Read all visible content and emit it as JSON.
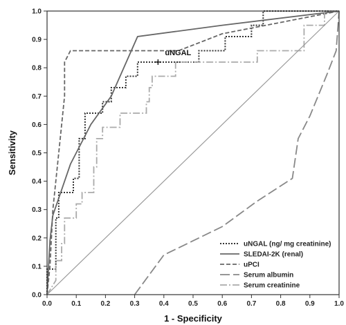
{
  "chart_data": {
    "type": "line",
    "title": "",
    "xlabel": "1 - Specificity",
    "ylabel": "Sensitivity",
    "xlim": [
      0,
      1
    ],
    "ylim": [
      0,
      1
    ],
    "x_ticks": [
      "0.0",
      "0.1",
      "0.2",
      "0.3",
      "0.4",
      "0.5",
      "0.6",
      "0.7",
      "0.8",
      "0.9",
      "1.0"
    ],
    "y_ticks": [
      "0.0",
      "0.1",
      "0.2",
      "0.3",
      "0.4",
      "0.5",
      "0.6",
      "0.7",
      "0.8",
      "0.9",
      "1.0"
    ],
    "grid": false,
    "legend_position": "bottom-right",
    "annotation": {
      "text": "uNGAL",
      "x": 0.38,
      "y": 0.82
    },
    "series": [
      {
        "name": "uNGAL (ng/ mg creatinine)",
        "style": "dotted",
        "color": "#333333",
        "points": [
          [
            0,
            0
          ],
          [
            0,
            0.09
          ],
          [
            0.03,
            0.09
          ],
          [
            0.03,
            0.27
          ],
          [
            0.04,
            0.27
          ],
          [
            0.04,
            0.36
          ],
          [
            0.09,
            0.36
          ],
          [
            0.09,
            0.41
          ],
          [
            0.11,
            0.41
          ],
          [
            0.11,
            0.55
          ],
          [
            0.13,
            0.55
          ],
          [
            0.13,
            0.64
          ],
          [
            0.19,
            0.64
          ],
          [
            0.19,
            0.68
          ],
          [
            0.22,
            0.68
          ],
          [
            0.22,
            0.73
          ],
          [
            0.27,
            0.73
          ],
          [
            0.27,
            0.77
          ],
          [
            0.31,
            0.77
          ],
          [
            0.31,
            0.82
          ],
          [
            0.52,
            0.82
          ],
          [
            0.52,
            0.86
          ],
          [
            0.61,
            0.86
          ],
          [
            0.61,
            0.91
          ],
          [
            0.7,
            0.91
          ],
          [
            0.7,
            0.95
          ],
          [
            0.74,
            0.95
          ],
          [
            0.74,
            1.0
          ],
          [
            1.0,
            1.0
          ]
        ]
      },
      {
        "name": "SLEDAI-2K (renal)",
        "style": "solid",
        "color": "#666666",
        "points": [
          [
            0,
            0
          ],
          [
            0.01,
            0.19
          ],
          [
            0.02,
            0.28
          ],
          [
            0.05,
            0.37
          ],
          [
            0.08,
            0.46
          ],
          [
            0.15,
            0.6
          ],
          [
            0.22,
            0.7
          ],
          [
            0.31,
            0.91
          ],
          [
            0.6,
            0.95
          ],
          [
            1.0,
            1.0
          ]
        ]
      },
      {
        "name": "uPCI",
        "style": "dashed",
        "color": "#666666",
        "points": [
          [
            0,
            0
          ],
          [
            0.01,
            0.1
          ],
          [
            0.02,
            0.3
          ],
          [
            0.04,
            0.5
          ],
          [
            0.06,
            0.7
          ],
          [
            0.06,
            0.82
          ],
          [
            0.08,
            0.86
          ],
          [
            0.45,
            0.86
          ],
          [
            0.6,
            0.92
          ],
          [
            0.75,
            0.95
          ],
          [
            1.0,
            1.0
          ]
        ]
      },
      {
        "name": "Serum albumin",
        "style": "longdash",
        "color": "#888888",
        "points": [
          [
            0.3,
            0.0
          ],
          [
            0.4,
            0.14
          ],
          [
            0.6,
            0.24
          ],
          [
            0.72,
            0.33
          ],
          [
            0.84,
            0.41
          ],
          [
            0.86,
            0.55
          ],
          [
            0.9,
            0.63
          ],
          [
            0.96,
            0.78
          ],
          [
            0.99,
            0.86
          ],
          [
            1.0,
            1.0
          ]
        ]
      },
      {
        "name": "Serum creatinine",
        "style": "dashdot",
        "color": "#aaaaaa",
        "points": [
          [
            0,
            0
          ],
          [
            0.03,
            0.05
          ],
          [
            0.03,
            0.12
          ],
          [
            0.05,
            0.12
          ],
          [
            0.05,
            0.18
          ],
          [
            0.06,
            0.18
          ],
          [
            0.06,
            0.27
          ],
          [
            0.1,
            0.27
          ],
          [
            0.1,
            0.32
          ],
          [
            0.12,
            0.32
          ],
          [
            0.12,
            0.36
          ],
          [
            0.16,
            0.36
          ],
          [
            0.16,
            0.45
          ],
          [
            0.17,
            0.45
          ],
          [
            0.17,
            0.55
          ],
          [
            0.19,
            0.55
          ],
          [
            0.19,
            0.59
          ],
          [
            0.25,
            0.59
          ],
          [
            0.25,
            0.64
          ],
          [
            0.34,
            0.64
          ],
          [
            0.34,
            0.68
          ],
          [
            0.35,
            0.68
          ],
          [
            0.35,
            0.73
          ],
          [
            0.36,
            0.73
          ],
          [
            0.36,
            0.77
          ],
          [
            0.44,
            0.77
          ],
          [
            0.44,
            0.82
          ],
          [
            0.72,
            0.82
          ],
          [
            0.72,
            0.86
          ],
          [
            0.88,
            0.86
          ],
          [
            0.88,
            0.95
          ],
          [
            0.95,
            0.95
          ],
          [
            0.95,
            1.0
          ],
          [
            1.0,
            1.0
          ]
        ]
      },
      {
        "name": "",
        "style": "solid",
        "color": "#999999",
        "points": [
          [
            0,
            0
          ],
          [
            1,
            1
          ]
        ]
      }
    ]
  }
}
